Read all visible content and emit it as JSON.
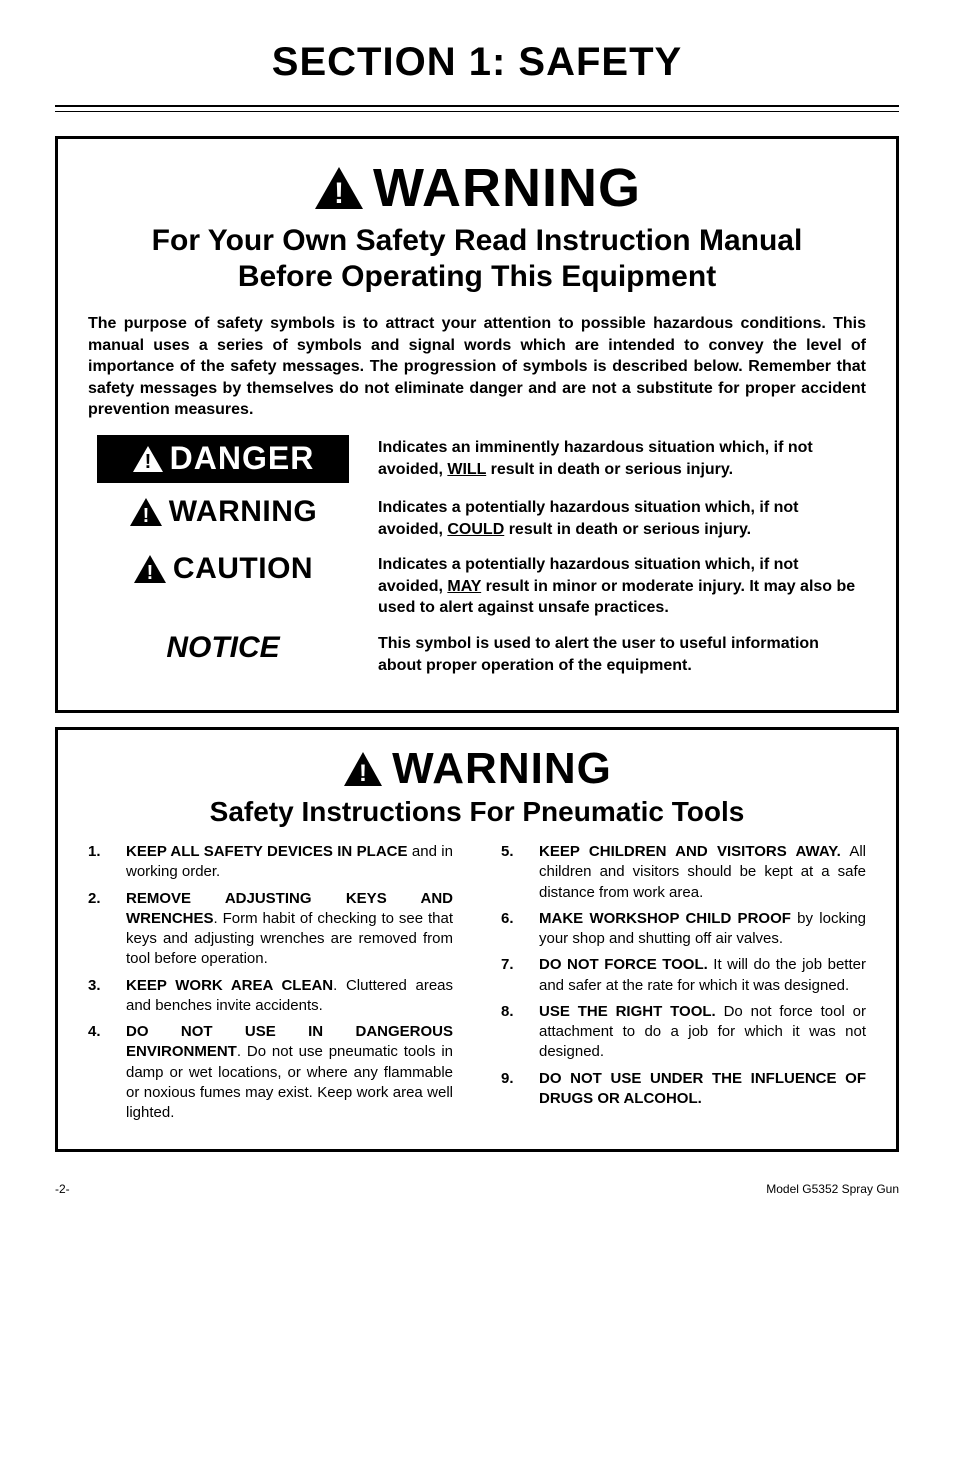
{
  "section_title": "SECTION 1: SAFETY",
  "rule_color": "#000000",
  "box_border_color": "#000000",
  "background_color": "#ffffff",
  "text_color": "#000000",
  "fonts": {
    "family": "Arial, Helvetica, sans-serif"
  },
  "block1": {
    "warning_label": "WARNING",
    "subtitle_line1": "For Your Own Safety Read Instruction Manual",
    "subtitle_line2": "Before Operating This Equipment",
    "intro": "The purpose of safety symbols is to attract your attention to possible hazardous conditions. This manual uses a series of symbols and signal words which are intended to convey the level of importance of the safety messages. The progression of symbols is described below. Remember that safety messages by themselves do not eliminate danger and are not a substitute for proper accident prevention measures.",
    "symbols": {
      "danger": {
        "label": "DANGER",
        "bg": "#000000",
        "fg": "#ffffff",
        "desc_pre": "Indicates an imminently hazardous situation which, if not avoided, ",
        "desc_u": "WILL",
        "desc_post": " result in death or serious injury."
      },
      "warning": {
        "label": "WARNING",
        "desc_pre": "Indicates a potentially hazardous situation which, if not avoided, ",
        "desc_u": "COULD",
        "desc_post": " result in death or serious injury."
      },
      "caution": {
        "label": "CAUTION",
        "desc_pre": "Indicates a potentially hazardous situation which, if not avoided, ",
        "desc_u": "MAY",
        "desc_post": " result in minor or moderate injury. It may also be used to alert against unsafe practices."
      },
      "notice": {
        "label": "NOTICE",
        "desc": "This symbol is used to alert the user to useful information about proper operation of the equipment."
      }
    }
  },
  "block2": {
    "warning_label": "WARNING",
    "subtitle": "Safety Instructions For Pneumatic Tools",
    "left": [
      {
        "n": "1.",
        "bold": "KEEP ALL SAFETY DEVICES IN PLACE",
        "rest": " and in working order."
      },
      {
        "n": "2.",
        "bold": "REMOVE ADJUSTING KEYS AND WRENCHES",
        "rest": ". Form habit of checking to see that keys and adjusting wrenches are removed from tool before operation."
      },
      {
        "n": "3.",
        "bold": "KEEP WORK AREA CLEAN",
        "rest": ". Cluttered areas and benches invite accidents."
      },
      {
        "n": "4.",
        "bold": "DO NOT USE IN DANGEROUS ENVIRONMENT",
        "rest": ". Do not use pneumatic tools in damp or wet locations, or where any flammable or noxious fumes may exist. Keep work area well lighted."
      }
    ],
    "right": [
      {
        "n": "5.",
        "bold": "KEEP CHILDREN AND VISITORS AWAY.",
        "rest": " All children and visitors should be kept at a safe distance from work area."
      },
      {
        "n": "6.",
        "bold": "MAKE WORKSHOP CHILD PROOF",
        "rest": " by locking your shop and shutting off air valves."
      },
      {
        "n": "7.",
        "bold": "DO NOT FORCE TOOL.",
        "rest": " It will do the job better and safer at the rate for which it was designed."
      },
      {
        "n": "8.",
        "bold": "USE THE RIGHT TOOL.",
        "rest": " Do not force tool or attachment to do a job for which it was not designed."
      },
      {
        "n": "9.",
        "bold": "DO NOT USE UNDER THE INFLUENCE OF DRUGS OR ALCOHOL.",
        "rest": ""
      }
    ]
  },
  "footer": {
    "left": "-2-",
    "right": "Model G5352 Spray Gun"
  },
  "icons": {
    "triangle_black_fill": "#000000",
    "triangle_white_bang": "#ffffff"
  }
}
